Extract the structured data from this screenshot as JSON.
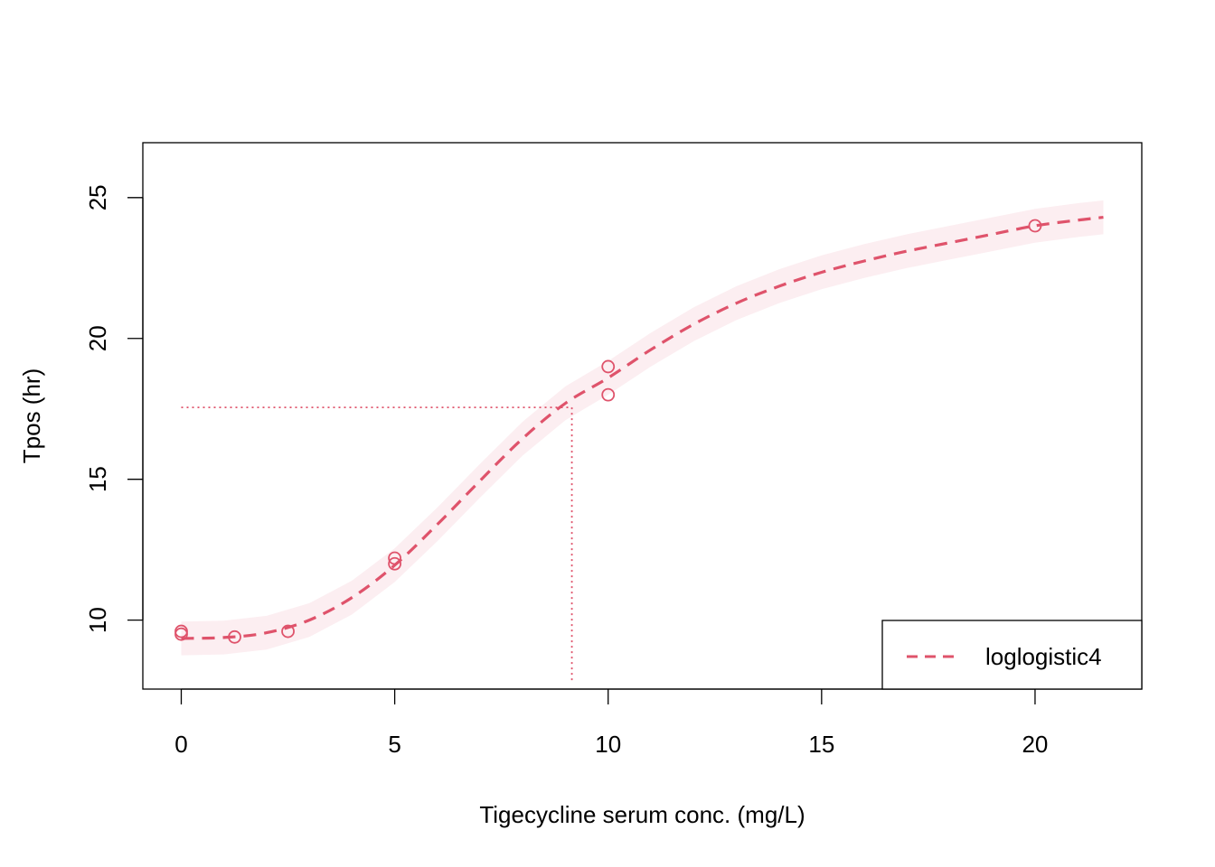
{
  "chart_data": {
    "type": "scatter",
    "title": "",
    "xlabel": "Tigecycline serum conc. (mg/L)",
    "ylabel": "Tpos (hr)",
    "xlim": [
      -0.9,
      22.5
    ],
    "ylim": [
      7.55,
      26.95
    ],
    "x_ticks": [
      0,
      5,
      10,
      15,
      20
    ],
    "x_tick_labels": [
      "0",
      "5",
      "10",
      "15",
      "20"
    ],
    "y_ticks": [
      10,
      15,
      20,
      25
    ],
    "y_tick_labels": [
      "10",
      "15",
      "20",
      "25"
    ],
    "grid": false,
    "legend_position": "bottom-right",
    "series": [
      {
        "name": "loglogistic4",
        "kind": "points",
        "x": [
          0,
          0,
          1.25,
          2.5,
          5,
          5,
          10,
          10,
          20
        ],
        "y": [
          9.6,
          9.5,
          9.4,
          9.6,
          12.2,
          12.0,
          19.0,
          18.0,
          24.0
        ]
      },
      {
        "name": "loglogistic4",
        "kind": "fitted-curve",
        "style": "dashed",
        "x": [
          0,
          1,
          2,
          3,
          4,
          5,
          6,
          7,
          8,
          9,
          10,
          11,
          12,
          13,
          14,
          15,
          16,
          17,
          18,
          19,
          20,
          21,
          21.6
        ],
        "y": [
          9.35,
          9.38,
          9.55,
          10.0,
          10.8,
          11.95,
          13.4,
          14.95,
          16.45,
          17.7,
          18.6,
          19.6,
          20.5,
          21.25,
          21.85,
          22.35,
          22.75,
          23.1,
          23.4,
          23.7,
          24.0,
          24.2,
          24.3
        ]
      }
    ],
    "confidence_band_halfwidth": 0.6,
    "reference_lines": {
      "x": 9.15,
      "y": 17.55,
      "style": "dotted"
    },
    "colors": {
      "series": "#DF536B",
      "band": "#FCEEF1",
      "axis": "#000000"
    }
  }
}
